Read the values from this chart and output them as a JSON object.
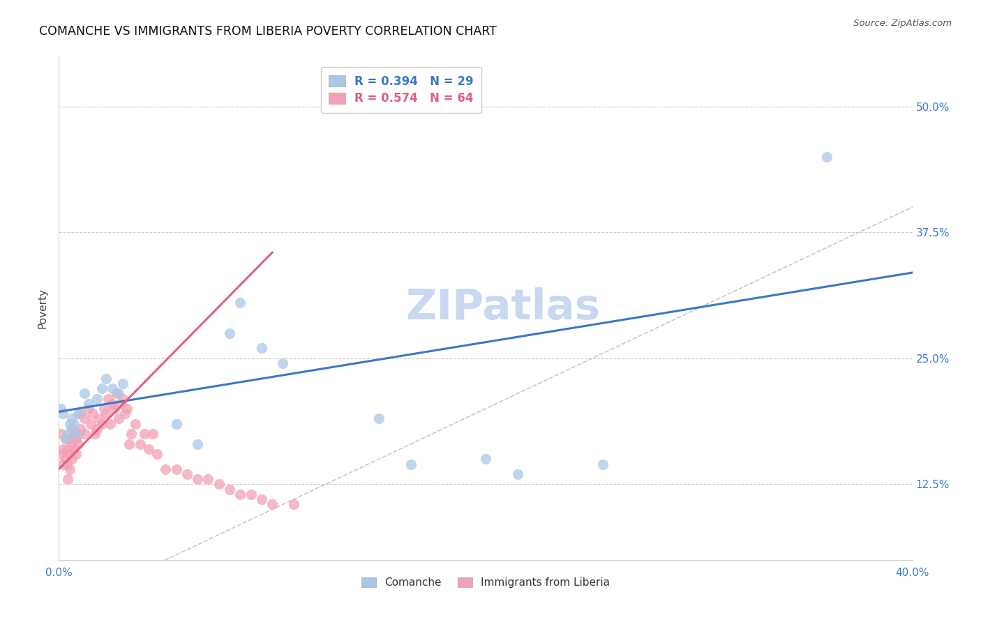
{
  "title": "COMANCHE VS IMMIGRANTS FROM LIBERIA POVERTY CORRELATION CHART",
  "source": "Source: ZipAtlas.com",
  "ylabel": "Poverty",
  "ytick_labels": [
    "12.5%",
    "25.0%",
    "37.5%",
    "50.0%"
  ],
  "ytick_values": [
    0.125,
    0.25,
    0.375,
    0.5
  ],
  "xlim": [
    0.0,
    0.4
  ],
  "ylim": [
    0.05,
    0.55
  ],
  "legend_color1": "#a8c8e8",
  "legend_color2": "#f4a0b5",
  "comanche_color": "#a8c8e8",
  "liberia_color": "#f4a0b5",
  "trendline_blue_color": "#3a78c9",
  "trendline_pink_color": "#e0607e",
  "diagonal_color": "#c8c8c8",
  "watermark": "ZIPatlas",
  "watermark_color": "#c8d8f0",
  "blue_line_x0": 0.0,
  "blue_line_y0": 0.197,
  "blue_line_x1": 0.4,
  "blue_line_y1": 0.335,
  "pink_line_x0": 0.0,
  "pink_line_y0": 0.14,
  "pink_line_x1": 0.1,
  "pink_line_y1": 0.355,
  "comanche_x": [
    0.001,
    0.002,
    0.003,
    0.004,
    0.005,
    0.006,
    0.007,
    0.008,
    0.009,
    0.012,
    0.014,
    0.018,
    0.02,
    0.022,
    0.025,
    0.028,
    0.03,
    0.055,
    0.065,
    0.08,
    0.085,
    0.095,
    0.105,
    0.15,
    0.165,
    0.2,
    0.215,
    0.255,
    0.36
  ],
  "comanche_y": [
    0.2,
    0.195,
    0.17,
    0.175,
    0.185,
    0.19,
    0.185,
    0.175,
    0.195,
    0.215,
    0.205,
    0.21,
    0.22,
    0.23,
    0.22,
    0.215,
    0.225,
    0.185,
    0.165,
    0.275,
    0.305,
    0.26,
    0.245,
    0.19,
    0.145,
    0.15,
    0.135,
    0.145,
    0.45
  ],
  "liberia_x": [
    0.001,
    0.001,
    0.002,
    0.002,
    0.003,
    0.003,
    0.004,
    0.004,
    0.004,
    0.005,
    0.005,
    0.005,
    0.006,
    0.006,
    0.006,
    0.007,
    0.007,
    0.008,
    0.008,
    0.009,
    0.009,
    0.01,
    0.01,
    0.012,
    0.012,
    0.014,
    0.015,
    0.016,
    0.017,
    0.018,
    0.019,
    0.02,
    0.021,
    0.022,
    0.023,
    0.024,
    0.025,
    0.026,
    0.027,
    0.028,
    0.029,
    0.03,
    0.031,
    0.032,
    0.033,
    0.034,
    0.036,
    0.038,
    0.04,
    0.042,
    0.044,
    0.046,
    0.05,
    0.055,
    0.06,
    0.065,
    0.07,
    0.075,
    0.08,
    0.085,
    0.09,
    0.095,
    0.1,
    0.11
  ],
  "liberia_y": [
    0.155,
    0.175,
    0.16,
    0.145,
    0.15,
    0.17,
    0.145,
    0.16,
    0.13,
    0.155,
    0.17,
    0.14,
    0.15,
    0.165,
    0.18,
    0.16,
    0.175,
    0.155,
    0.17,
    0.165,
    0.175,
    0.18,
    0.195,
    0.175,
    0.19,
    0.2,
    0.185,
    0.195,
    0.175,
    0.18,
    0.19,
    0.185,
    0.2,
    0.195,
    0.21,
    0.185,
    0.205,
    0.2,
    0.215,
    0.19,
    0.205,
    0.21,
    0.195,
    0.2,
    0.165,
    0.175,
    0.185,
    0.165,
    0.175,
    0.16,
    0.175,
    0.155,
    0.14,
    0.14,
    0.135,
    0.13,
    0.13,
    0.125,
    0.12,
    0.115,
    0.115,
    0.11,
    0.105,
    0.105
  ]
}
